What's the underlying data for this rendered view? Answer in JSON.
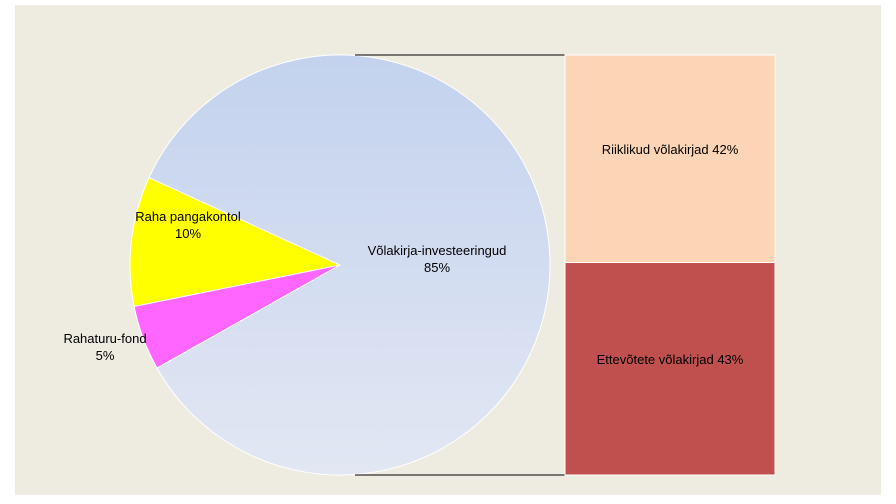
{
  "chart_data": {
    "type": "pie-of-bar",
    "pie": {
      "categories": [
        "Raha pangakontol",
        "Rahaturu-fond",
        "Võlakirja-investeeringud"
      ],
      "values": [
        10,
        5,
        85
      ],
      "value_labels": [
        "10%",
        "5%",
        "85%"
      ],
      "colors": [
        "#ffff00",
        "#ff66ff",
        "#d3ddf0"
      ]
    },
    "bar": {
      "categories": [
        "Riiklikud võlakirjad",
        "Ettevõtete võlakirjad"
      ],
      "values": [
        42,
        43
      ],
      "value_labels": [
        "42%",
        "43%"
      ],
      "colors": [
        "#fbd5b5",
        "#c0504d"
      ]
    }
  }
}
